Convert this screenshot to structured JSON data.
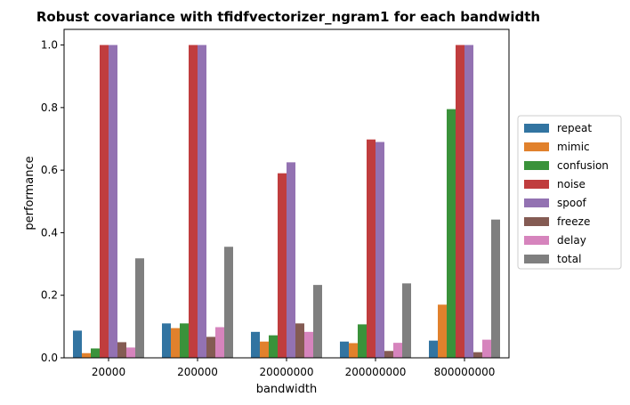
{
  "chart_data": {
    "type": "bar",
    "title": "Robust covariance with tfidfvectorizer_ngram1 for each bandwidth",
    "xlabel": "bandwidth",
    "ylabel": "performance",
    "categories": [
      "20000",
      "200000",
      "20000000",
      "200000000",
      "800000000"
    ],
    "ylim": [
      0,
      1.05
    ],
    "yticks": [
      "0.0",
      "0.2",
      "0.4",
      "0.6",
      "0.8",
      "1.0"
    ],
    "grid": false,
    "legend_position": "right",
    "series": [
      {
        "name": "repeat",
        "color": "#3274a1",
        "values": [
          0.087,
          0.11,
          0.083,
          0.052,
          0.055
        ]
      },
      {
        "name": "mimic",
        "color": "#e1812c",
        "values": [
          0.015,
          0.095,
          0.052,
          0.047,
          0.17
        ]
      },
      {
        "name": "confusion",
        "color": "#3a923a",
        "values": [
          0.03,
          0.11,
          0.072,
          0.107,
          0.795
        ]
      },
      {
        "name": "noise",
        "color": "#c03d3e",
        "values": [
          1.0,
          1.0,
          0.59,
          0.698,
          1.0
        ]
      },
      {
        "name": "spoof",
        "color": "#9372b2",
        "values": [
          1.0,
          1.0,
          0.625,
          0.69,
          1.0
        ]
      },
      {
        "name": "freeze",
        "color": "#845b53",
        "values": [
          0.05,
          0.067,
          0.11,
          0.022,
          0.018
        ]
      },
      {
        "name": "delay",
        "color": "#d684bd",
        "values": [
          0.033,
          0.098,
          0.083,
          0.048,
          0.058
        ]
      },
      {
        "name": "total",
        "color": "#7f7f7f",
        "values": [
          0.318,
          0.355,
          0.233,
          0.238,
          0.442
        ]
      }
    ]
  }
}
